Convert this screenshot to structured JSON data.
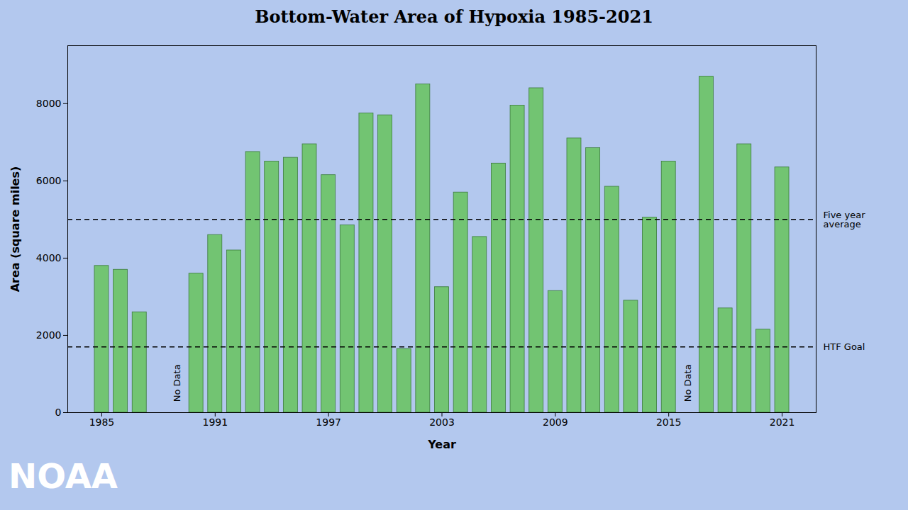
{
  "chart_data": {
    "type": "bar",
    "title": "Bottom-Water Area of Hypoxia 1985-2021",
    "xlabel": "Year",
    "ylabel": "Area (square miles)",
    "x": [
      1985,
      1986,
      1987,
      1988,
      1989,
      1990,
      1991,
      1992,
      1993,
      1994,
      1995,
      1996,
      1997,
      1998,
      1999,
      2000,
      2001,
      2002,
      2003,
      2004,
      2005,
      2006,
      2007,
      2008,
      2009,
      2010,
      2011,
      2012,
      2013,
      2014,
      2015,
      2016,
      2017,
      2018,
      2019,
      2020,
      2021
    ],
    "values": [
      3800,
      3700,
      2600,
      null,
      null,
      3600,
      4600,
      4200,
      6750,
      6500,
      6600,
      6950,
      6150,
      4850,
      7750,
      7700,
      1650,
      8500,
      3250,
      5700,
      4550,
      6450,
      7950,
      8400,
      3150,
      7100,
      6850,
      5850,
      2900,
      5050,
      6500,
      null,
      8700,
      2700,
      6950,
      2150,
      6350
    ],
    "color": "#72c472",
    "xlim": [
      1983.2,
      2022.8
    ],
    "xticks": [
      1985,
      1991,
      1997,
      2003,
      2009,
      2015,
      2021
    ],
    "ylim": [
      0,
      9500
    ],
    "yticks": [
      0,
      2000,
      4000,
      6000,
      8000
    ],
    "grid": false,
    "reference_lines": [
      {
        "value": 1700,
        "label": "HTF Goal",
        "line_style": "dashed"
      },
      {
        "value": 5000,
        "label": "Five year\naverage",
        "line_style": "dashed"
      }
    ],
    "annotations": [
      {
        "text": "No Data",
        "x": 1989,
        "y": 280
      },
      {
        "text": "No Data",
        "x": 2016,
        "y": 280
      },
      {
        "text": "NOAA"
      }
    ]
  }
}
